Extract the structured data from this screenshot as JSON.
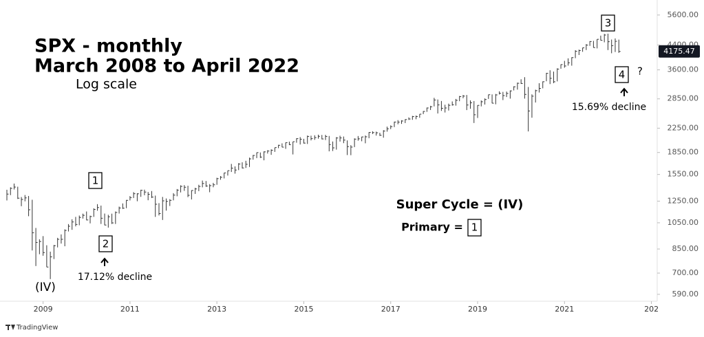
{
  "chart_data": {
    "type": "ohlc",
    "title": "SPX - monthly",
    "subtitle": "March 2008 to April 2022",
    "scale_note": "Log scale",
    "log_y": true,
    "color": "#333333",
    "annotations": [
      "1",
      "2",
      "(IV)",
      "17.12% decline",
      "3",
      "4",
      "?",
      "15.69% decline",
      "Super Cycle = (IV)",
      "Primary =",
      "1"
    ],
    "watermark": "TradingView",
    "ylim": [
      558,
      6320
    ],
    "yticks": [
      {
        "value": 590,
        "label": "590.00"
      },
      {
        "value": 700,
        "label": "700.00"
      },
      {
        "value": 850,
        "label": "850.00"
      },
      {
        "value": 1050,
        "label": "1050.00"
      },
      {
        "value": 1250,
        "label": "1250.00"
      },
      {
        "value": 1550,
        "label": "1550.00"
      },
      {
        "value": 1850,
        "label": "1850.00"
      },
      {
        "value": 2250,
        "label": "2250.00"
      },
      {
        "value": 2850,
        "label": "2850.00"
      },
      {
        "value": 3600,
        "label": "3600.00"
      },
      {
        "value": 4400,
        "label": "4400.00"
      },
      {
        "value": 5600,
        "label": "5600.00"
      }
    ],
    "xlim": [
      -1.9,
      179.6
    ],
    "xticks": [
      {
        "value": 10,
        "label": "2009"
      },
      {
        "value": 34,
        "label": "2011"
      },
      {
        "value": 58,
        "label": "2013"
      },
      {
        "value": 82,
        "label": "2015"
      },
      {
        "value": 106,
        "label": "2017"
      },
      {
        "value": 130,
        "label": "2019"
      },
      {
        "value": 154,
        "label": "2021"
      },
      {
        "value": 178,
        "label": "202"
      }
    ],
    "high": [
      1370,
      1397,
      1440,
      1404,
      1292,
      1313,
      1303,
      1264,
      1007,
      919,
      943,
      876,
      832,
      878,
      930,
      956,
      996,
      1039,
      1080,
      1101,
      1113,
      1130,
      1150,
      1112,
      1180,
      1220,
      1206,
      1131,
      1120,
      1130,
      1150,
      1196,
      1227,
      1262,
      1302,
      1344,
      1332,
      1370,
      1371,
      1346,
      1356,
      1307,
      1230,
      1293,
      1277,
      1270,
      1333,
      1378,
      1420,
      1422,
      1415,
      1364,
      1392,
      1426,
      1475,
      1470,
      1434,
      1448,
      1509,
      1530,
      1570,
      1598,
      1687,
      1654,
      1698,
      1709,
      1730,
      1775,
      1813,
      1849,
      1850,
      1867,
      1884,
      1897,
      1924,
      1968,
      1991,
      2005,
      2019,
      2018,
      2075,
      2094,
      2065,
      2120,
      2118,
      2125,
      2135,
      2130,
      2133,
      2113,
      2021,
      2094,
      2117,
      2104,
      2039,
      1962,
      2073,
      2112,
      2100,
      2121,
      2178,
      2194,
      2188,
      2169,
      2214,
      2278,
      2301,
      2371,
      2401,
      2399,
      2418,
      2454,
      2484,
      2491,
      2520,
      2582,
      2657,
      2694,
      2873,
      2835,
      2801,
      2718,
      2742,
      2791,
      2848,
      2917,
      2941,
      2940,
      2815,
      2800,
      2708,
      2813,
      2860,
      2950,
      2954,
      2964,
      3028,
      3014,
      3022,
      3050,
      3154,
      3248,
      3337,
      3394,
      3136,
      2955,
      3068,
      3233,
      3280,
      3514,
      3588,
      3550,
      3646,
      3760,
      3870,
      3950,
      3984,
      4219,
      4238,
      4302,
      4430,
      4537,
      4546,
      4608,
      4743,
      4808,
      4818,
      4595,
      4637,
      4593
    ],
    "low": [
      1257,
      1312,
      1373,
      1272,
      1200,
      1248,
      1107,
      840,
      741,
      815,
      805,
      735,
      667,
      784,
      861,
      888,
      869,
      979,
      992,
      1020,
      1029,
      1086,
      1071,
      1045,
      1101,
      1157,
      1040,
      1029,
      1010,
      1040,
      1040,
      1131,
      1174,
      1181,
      1257,
      1282,
      1249,
      1294,
      1311,
      1259,
      1282,
      1101,
      1114,
      1074,
      1158,
      1202,
      1258,
      1300,
      1341,
      1358,
      1291,
      1267,
      1325,
      1355,
      1397,
      1403,
      1343,
      1398,
      1426,
      1485,
      1501,
      1536,
      1581,
      1560,
      1605,
      1627,
      1633,
      1646,
      1746,
      1768,
      1770,
      1737,
      1834,
      1815,
      1859,
      1915,
      1930,
      1905,
      1964,
      1821,
      2001,
      1973,
      1988,
      1981,
      2039,
      2048,
      2068,
      2056,
      2045,
      1867,
      1872,
      1893,
      2020,
      1994,
      1812,
      1810,
      1932,
      2034,
      2025,
      1992,
      2075,
      2147,
      2120,
      2114,
      2084,
      2188,
      2233,
      2271,
      2322,
      2329,
      2345,
      2405,
      2407,
      2418,
      2447,
      2520,
      2566,
      2605,
      2682,
      2533,
      2586,
      2553,
      2594,
      2698,
      2698,
      2796,
      2864,
      2603,
      2631,
      2346,
      2443,
      2682,
      2722,
      2848,
      2750,
      2728,
      2952,
      2822,
      2892,
      2855,
      3050,
      3070,
      3214,
      2855,
      2192,
      2448,
      2767,
      2999,
      3102,
      3284,
      3210,
      3234,
      3280,
      3633,
      3662,
      3725,
      3723,
      3955,
      4057,
      4164,
      4223,
      4367,
      4306,
      4279,
      4561,
      4495,
      4222,
      4115,
      4157,
      4128
    ],
    "close": [
      1323,
      1386,
      1400,
      1280,
      1267,
      1283,
      1166,
      969,
      896,
      903,
      826,
      735,
      798,
      873,
      919,
      919,
      987,
      1021,
      1057,
      1036,
      1096,
      1115,
      1074,
      1104,
      1169,
      1187,
      1089,
      1031,
      1102,
      1049,
      1141,
      1183,
      1181,
      1258,
      1286,
      1327,
      1326,
      1364,
      1345,
      1321,
      1292,
      1219,
      1131,
      1253,
      1247,
      1258,
      1312,
      1366,
      1408,
      1398,
      1310,
      1362,
      1379,
      1407,
      1441,
      1412,
      1416,
      1426,
      1498,
      1515,
      1569,
      1598,
      1631,
      1606,
      1686,
      1633,
      1682,
      1757,
      1806,
      1848,
      1783,
      1859,
      1872,
      1884,
      1924,
      1960,
      1931,
      2003,
      1972,
      2018,
      2068,
      2059,
      1995,
      2105,
      2068,
      2086,
      2107,
      2063,
      2104,
      1972,
      1920,
      2079,
      2080,
      2044,
      1940,
      1932,
      2060,
      2065,
      2097,
      2099,
      2174,
      2171,
      2168,
      2126,
      2199,
      2239,
      2279,
      2364,
      2363,
      2384,
      2412,
      2423,
      2470,
      2472,
      2519,
      2575,
      2648,
      2674,
      2824,
      2714,
      2641,
      2648,
      2705,
      2718,
      2816,
      2902,
      2914,
      2712,
      2760,
      2507,
      2704,
      2784,
      2834,
      2946,
      2752,
      2942,
      2980,
      2926,
      2977,
      3038,
      3141,
      3231,
      3226,
      2954,
      2585,
      2912,
      3044,
      3100,
      3271,
      3500,
      3363,
      3270,
      3622,
      3756,
      3714,
      3811,
      3973,
      4181,
      4204,
      4298,
      4395,
      4523,
      4308,
      4605,
      4567,
      4766,
      4516,
      4374,
      4530,
      4175.47
    ]
  }
}
